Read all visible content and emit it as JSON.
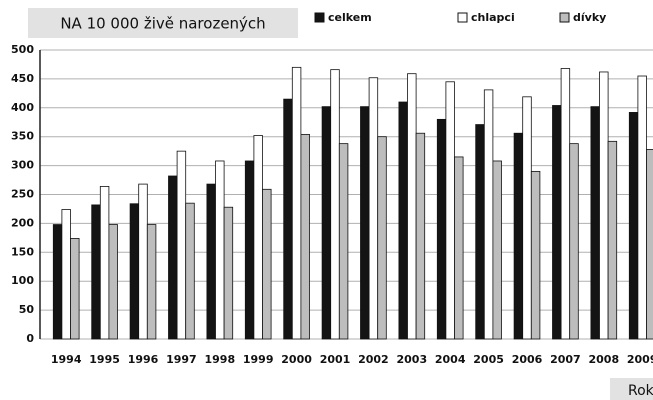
{
  "chart_data": {
    "type": "bar",
    "title": "NA 10 000 živě narozených",
    "x_label": "Rok",
    "categories": [
      "1994",
      "1995",
      "1996",
      "1997",
      "1998",
      "1999",
      "2000",
      "2001",
      "2002",
      "2003",
      "2004",
      "2005",
      "2006",
      "2007",
      "2008",
      "2009"
    ],
    "series": [
      {
        "name": "celkem",
        "color": "#141414",
        "values": [
          198,
          232,
          234,
          282,
          268,
          308,
          415,
          402,
          402,
          410,
          380,
          371,
          356,
          404,
          402,
          392
        ]
      },
      {
        "name": "chlapci",
        "color": "#ffffff",
        "values": [
          224,
          264,
          268,
          325,
          308,
          352,
          470,
          466,
          452,
          459,
          445,
          431,
          419,
          468,
          462,
          455
        ]
      },
      {
        "name": "dívky",
        "color": "#bdbdbd",
        "values": [
          174,
          198,
          198,
          235,
          228,
          259,
          354,
          338,
          350,
          356,
          315,
          308,
          290,
          338,
          342,
          328
        ]
      }
    ],
    "ylim": [
      0,
      500
    ],
    "yticks": [
      0,
      50,
      100,
      150,
      200,
      250,
      300,
      350,
      400,
      450,
      500
    ],
    "grid": true
  }
}
